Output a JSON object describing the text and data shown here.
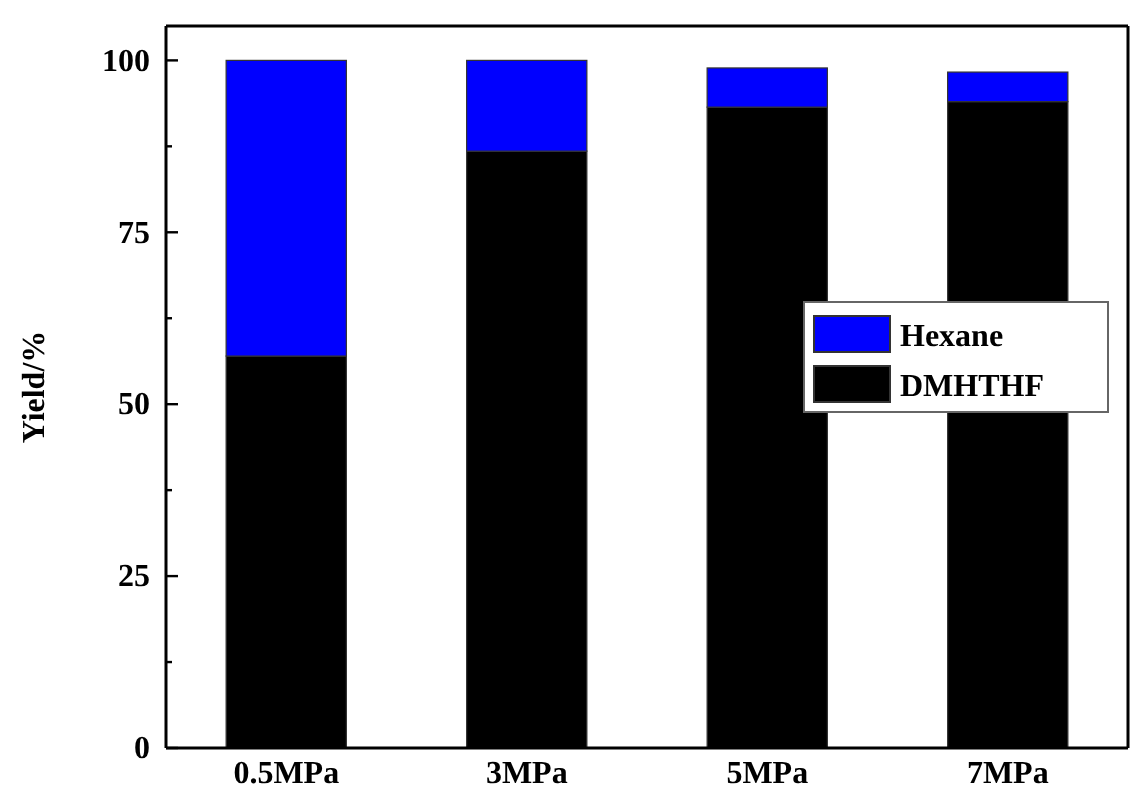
{
  "chart_data": {
    "type": "bar",
    "stacked": true,
    "ylabel": "Yield/%",
    "categories": [
      "0.5MPa",
      "3MPa",
      "5MPa",
      "7MPa"
    ],
    "series": [
      {
        "name": "DMHTHF",
        "color": "#000000",
        "values": [
          57.0,
          86.8,
          93.2,
          94.0
        ]
      },
      {
        "name": "Hexane",
        "color": "#0000ff",
        "values": [
          43.0,
          13.2,
          5.7,
          4.3
        ]
      }
    ],
    "ylim": [
      0,
      105
    ],
    "yticks": [
      0,
      {
        "value": 12.5,
        "label": null
      },
      25,
      {
        "value": 37.5,
        "label": null
      },
      50,
      {
        "value": 62.5,
        "label": null
      },
      75,
      {
        "value": 87.5,
        "label": null
      },
      100
    ],
    "legend": "right",
    "grid": false
  }
}
